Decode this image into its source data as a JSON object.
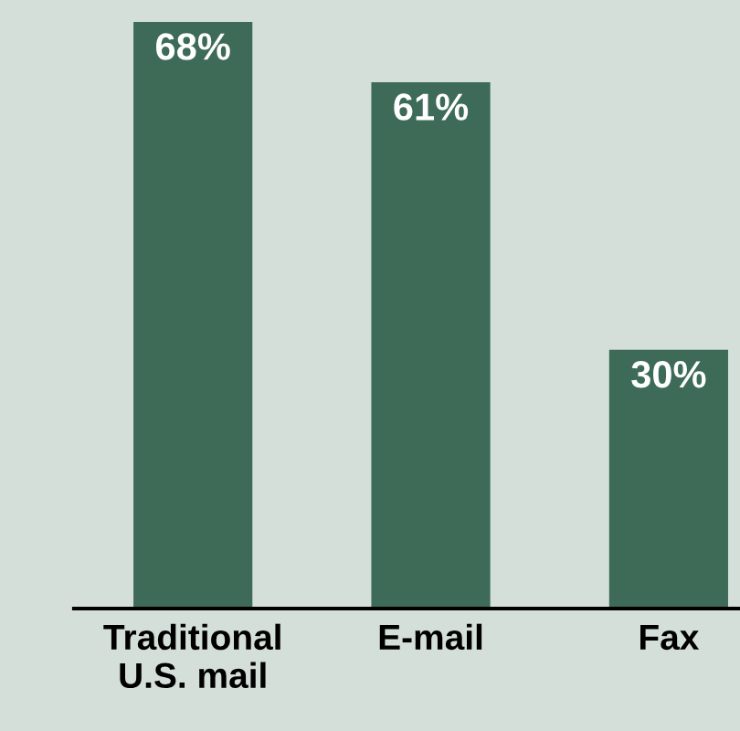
{
  "chart_data": {
    "type": "bar",
    "categories": [
      "Traditional\nU.S. mail",
      "E-mail",
      "Fax"
    ],
    "values": [
      68,
      61,
      30
    ],
    "value_labels": [
      "68%",
      "61%",
      "30%"
    ],
    "color": "#3d6b58",
    "grid": false,
    "legend": false
  }
}
